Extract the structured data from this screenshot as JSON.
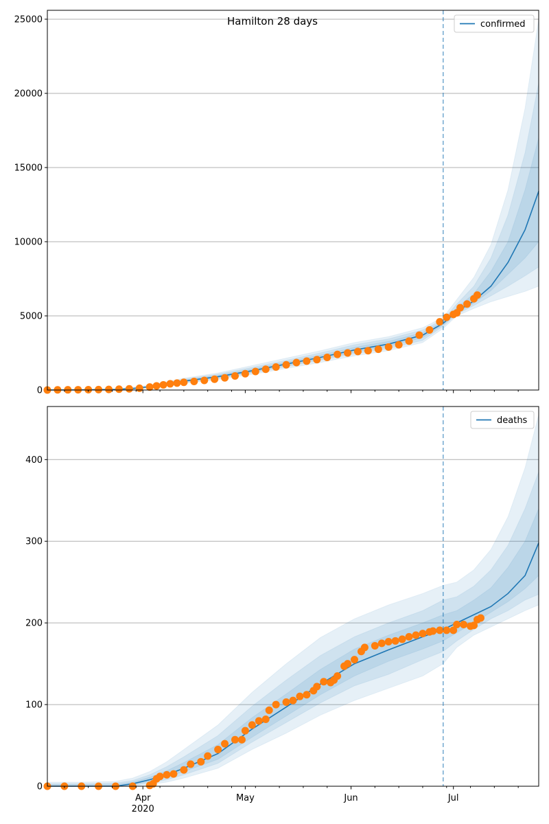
{
  "chart_data": [
    {
      "type": "line",
      "title": "Hamilton 28 days",
      "x_origin_date": "2020-03-04",
      "x_unit": "days since 2020-03-04",
      "xlim": [
        0,
        144
      ],
      "ylim": [
        0,
        25600
      ],
      "yticks": [
        0,
        5000,
        10000,
        15000,
        20000,
        25000
      ],
      "grid": "horizontal",
      "legend": {
        "placement": "top-right",
        "entries": [
          "confirmed"
        ]
      },
      "forecast_start_day": 116,
      "model": {
        "x": [
          0,
          10,
          20,
          25,
          30,
          35,
          40,
          50,
          60,
          70,
          80,
          90,
          100,
          110,
          116,
          120,
          125,
          130,
          135,
          140,
          144
        ],
        "median": [
          0,
          10,
          40,
          100,
          220,
          400,
          600,
          900,
          1300,
          1750,
          2200,
          2700,
          3100,
          3700,
          4500,
          5300,
          6000,
          7000,
          8600,
          10800,
          13400
        ],
        "bands": [
          {
            "hi": [
              30,
              40,
              90,
              180,
              330,
              560,
              800,
              1150,
              1650,
              2150,
              2650,
              3200,
              3600,
              4200,
              4900,
              6100,
              7600,
              9800,
              13500,
              19000,
              25000
            ],
            "lo": [
              0,
              0,
              10,
              50,
              140,
              280,
              450,
              700,
              1050,
              1450,
              1850,
              2300,
              2650,
              3200,
              4150,
              5000,
              5500,
              5950,
              6300,
              6650,
              7000
            ]
          },
          {
            "hi": [
              20,
              30,
              70,
              150,
              290,
              500,
              730,
              1070,
              1530,
              2000,
              2500,
              3050,
              3450,
              4050,
              4750,
              5800,
              7000,
              8900,
              11800,
              16000,
              20700
            ],
            "lo": [
              0,
              0,
              20,
              65,
              165,
              320,
              500,
              770,
              1150,
              1570,
              2000,
              2450,
              2800,
              3350,
              4300,
              5100,
              5700,
              6350,
              7000,
              7700,
              8300
            ]
          },
          {
            "hi": [
              10,
              20,
              55,
              125,
              255,
              450,
              670,
              990,
              1420,
              1880,
              2350,
              2880,
              3280,
              3880,
              4620,
              5550,
              6500,
              8000,
              10000,
              13500,
              17000
            ],
            "lo": [
              0,
              5,
              30,
              80,
              190,
              360,
              540,
              830,
              1200,
              1650,
              2080,
              2550,
              2950,
              3530,
              4400,
              5200,
              5850,
              6700,
              7800,
              8900,
              10000
            ]
          }
        ]
      },
      "observed": {
        "x": [
          0,
          3,
          6,
          9,
          12,
          15,
          18,
          21,
          24,
          27,
          30,
          32,
          34,
          36,
          38,
          40,
          43,
          46,
          49,
          52,
          55,
          58,
          61,
          64,
          67,
          70,
          73,
          76,
          79,
          82,
          85,
          88,
          91,
          94,
          97,
          100,
          103,
          106,
          109,
          112,
          115,
          117,
          119,
          120,
          121,
          123,
          125,
          126
        ],
        "y": [
          0,
          10,
          15,
          20,
          25,
          30,
          40,
          60,
          80,
          120,
          200,
          280,
          350,
          420,
          470,
          520,
          580,
          650,
          730,
          820,
          950,
          1100,
          1250,
          1400,
          1550,
          1700,
          1850,
          1950,
          2050,
          2200,
          2400,
          2500,
          2600,
          2650,
          2750,
          2900,
          3050,
          3300,
          3700,
          4050,
          4600,
          4900,
          5100,
          5200,
          5550,
          5800,
          6150,
          6400
        ]
      }
    },
    {
      "type": "line",
      "title": "",
      "x_origin_date": "2020-03-04",
      "x_unit": "days since 2020-03-04",
      "xlim": [
        0,
        144
      ],
      "ylim": [
        0,
        465
      ],
      "yticks": [
        0,
        100,
        200,
        300,
        400
      ],
      "grid": "horizontal",
      "legend": {
        "placement": "top-right",
        "entries": [
          "deaths"
        ]
      },
      "forecast_start_day": 116,
      "model": {
        "x": [
          0,
          10,
          20,
          25,
          30,
          35,
          40,
          50,
          60,
          70,
          80,
          90,
          100,
          110,
          116,
          120,
          125,
          130,
          135,
          140,
          144
        ],
        "median": [
          0,
          0,
          0,
          3,
          8,
          14,
          22,
          40,
          70,
          97,
          125,
          150,
          167,
          183,
          192,
          200,
          210,
          220,
          236,
          258,
          298
        ],
        "bands": [
          {
            "hi": [
              5,
              5,
              6,
              10,
              18,
              30,
              45,
              75,
              115,
              150,
              182,
              205,
              222,
              236,
              246,
              250,
              265,
              290,
              330,
              390,
              455
            ],
            "lo": [
              0,
              0,
              0,
              0,
              2,
              5,
              10,
              22,
              45,
              65,
              87,
              105,
              120,
              135,
              150,
              170,
              185,
              195,
              205,
              215,
              222
            ]
          },
          {
            "hi": [
              3,
              3,
              4,
              7,
              14,
              24,
              36,
              62,
              98,
              130,
              160,
              183,
              200,
              215,
              228,
              232,
              245,
              265,
              295,
              340,
              385
            ],
            "lo": [
              0,
              0,
              0,
              1,
              4,
              8,
              14,
              28,
              54,
              78,
              102,
              123,
              137,
              155,
              165,
              178,
              192,
              205,
              215,
              228,
              235
            ]
          },
          {
            "hi": [
              2,
              2,
              2,
              5,
              11,
              19,
              29,
              51,
              84,
              113,
              143,
              168,
              185,
              200,
              210,
              215,
              228,
              243,
              268,
              300,
              340
            ],
            "lo": [
              0,
              0,
              0,
              2,
              6,
              11,
              18,
              33,
              60,
              86,
              112,
              135,
              153,
              168,
              178,
              188,
              200,
              213,
              226,
              242,
              258
            ]
          }
        ]
      },
      "observed": {
        "x": [
          0,
          5,
          10,
          15,
          20,
          25,
          30,
          31,
          32,
          33,
          35,
          37,
          40,
          42,
          45,
          47,
          50,
          52,
          55,
          57,
          58,
          60,
          62,
          64,
          65,
          67,
          70,
          72,
          74,
          76,
          78,
          79,
          81,
          83,
          84,
          85,
          87,
          88,
          90,
          92,
          93,
          96,
          98,
          100,
          102,
          104,
          106,
          108,
          110,
          112,
          113,
          115,
          117,
          119,
          120,
          122,
          124,
          125,
          126,
          127
        ],
        "y": [
          0,
          0,
          0,
          0,
          0,
          0,
          1,
          3,
          9,
          12,
          14,
          15,
          20,
          27,
          30,
          37,
          45,
          52,
          57,
          57,
          68,
          75,
          80,
          82,
          93,
          100,
          103,
          105,
          110,
          112,
          117,
          122,
          128,
          127,
          130,
          135,
          147,
          150,
          155,
          165,
          170,
          172,
          175,
          177,
          178,
          180,
          183,
          185,
          187,
          189,
          190,
          191,
          191,
          191,
          198,
          198,
          196,
          197,
          204,
          206
        ]
      }
    }
  ],
  "x_axis": {
    "major_ticks": [
      {
        "day": 28,
        "label": "Apr",
        "sublabel": "2020"
      },
      {
        "day": 58,
        "label": "May",
        "sublabel": ""
      },
      {
        "day": 89,
        "label": "Jun",
        "sublabel": ""
      },
      {
        "day": 119,
        "label": "Jul",
        "sublabel": ""
      }
    ],
    "minor_tick_days": [
      5,
      12,
      19,
      26,
      33,
      40,
      47,
      54,
      61,
      68,
      75,
      82,
      96,
      103,
      110,
      117,
      124,
      131,
      138
    ]
  },
  "colors": {
    "model": "#1f77b4",
    "observed": "#ff7f0e",
    "band": "#1f77b4",
    "grid": "#b0b0b0"
  }
}
